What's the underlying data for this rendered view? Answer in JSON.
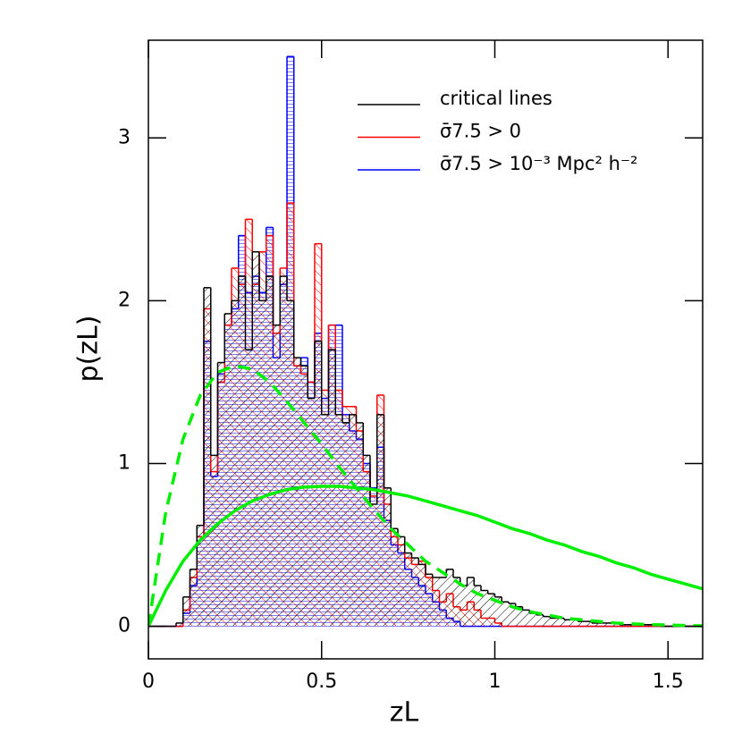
{
  "chart_data": {
    "type": "histogram",
    "xlabel": "zL",
    "ylabel": "p(zL)",
    "xlim": [
      0,
      1.6
    ],
    "ylim": [
      -0.2,
      3.6
    ],
    "xticks": [
      0,
      0.5,
      1,
      1.5
    ],
    "yticks": [
      0,
      1,
      2,
      3
    ],
    "legend": "upper right",
    "bins": [
      0,
      0.02,
      0.04,
      0.06,
      0.08,
      0.1,
      0.12,
      0.14,
      0.16,
      0.18,
      0.2,
      0.22,
      0.24,
      0.26,
      0.28,
      0.3,
      0.32,
      0.34,
      0.36,
      0.38,
      0.4,
      0.42,
      0.44,
      0.46,
      0.48,
      0.5,
      0.52,
      0.54,
      0.56,
      0.58,
      0.6,
      0.62,
      0.64,
      0.66,
      0.68,
      0.7,
      0.72,
      0.74,
      0.76,
      0.78,
      0.8,
      0.82,
      0.84,
      0.86,
      0.88,
      0.9,
      0.92,
      0.94,
      0.96,
      0.98,
      1,
      1.02,
      1.04,
      1.06,
      1.08,
      1.1,
      1.12,
      1.14,
      1.16,
      1.18,
      1.2,
      1.22,
      1.24,
      1.26,
      1.28,
      1.3,
      1.32,
      1.34,
      1.36,
      1.38,
      1.4,
      1.42,
      1.44,
      1.46,
      1.48,
      1.5,
      1.52,
      1.54,
      1.56,
      1.58,
      1.6
    ],
    "series": [
      {
        "name": "critical lines",
        "color": "#000000",
        "hatch": "backslash",
        "values": [
          0,
          0,
          0,
          0,
          0.02,
          0.18,
          0.35,
          0.62,
          2.08,
          1.05,
          1.62,
          1.92,
          2.0,
          2.15,
          1.7,
          2.3,
          2.0,
          2.15,
          1.85,
          2.15,
          2.0,
          1.65,
          1.6,
          1.4,
          1.75,
          1.3,
          1.7,
          1.3,
          1.25,
          1.3,
          1.25,
          1.05,
          0.75,
          1.3,
          0.85,
          0.6,
          0.55,
          0.45,
          0.42,
          0.38,
          0.32,
          0.3,
          0.3,
          0.35,
          0.3,
          0.25,
          0.3,
          0.25,
          0.22,
          0.2,
          0.18,
          0.15,
          0.14,
          0.12,
          0.1,
          0.08,
          0.07,
          0.06,
          0.05,
          0.05,
          0.04,
          0.04,
          0.03,
          0.03,
          0.02,
          0.02,
          0.02,
          0.02,
          0.01,
          0.01,
          0.01,
          0.01,
          0.01,
          0.01,
          0,
          0,
          0,
          0,
          0,
          0
        ]
      },
      {
        "name": "σ̄7.5 > 0",
        "color": "#ff0000",
        "hatch": "slash",
        "values": [
          0,
          0,
          0,
          0,
          0,
          0.1,
          0.3,
          0.55,
          1.95,
          0.95,
          1.5,
          1.85,
          2.2,
          2.1,
          2.5,
          2.1,
          2.3,
          2.4,
          1.8,
          2.2,
          2.6,
          1.6,
          1.55,
          1.5,
          2.35,
          1.45,
          1.85,
          1.45,
          1.35,
          1.35,
          1.2,
          0.95,
          0.8,
          1.42,
          0.75,
          0.55,
          0.5,
          0.42,
          0.38,
          0.4,
          0.3,
          0.22,
          0.15,
          0.2,
          0.12,
          0.1,
          0.15,
          0.1,
          0.05,
          0.05,
          0.02,
          0,
          0,
          0,
          0,
          0,
          0,
          0,
          0,
          0,
          0,
          0,
          0,
          0,
          0,
          0,
          0,
          0,
          0,
          0,
          0,
          0,
          0,
          0,
          0,
          0,
          0,
          0,
          0,
          0
        ]
      },
      {
        "name": "σ̄7.5 > 10⁻³ Mpc² h⁻²",
        "color": "#0000ff",
        "hatch": "horizontal",
        "values": [
          0,
          0,
          0,
          0,
          0,
          0.08,
          0.25,
          0.55,
          1.75,
          0.92,
          1.55,
          1.85,
          1.95,
          2.4,
          2.05,
          2.15,
          2.05,
          2.45,
          1.65,
          2.1,
          3.5,
          1.6,
          1.65,
          1.5,
          1.8,
          1.4,
          1.85,
          1.85,
          1.3,
          1.2,
          1.15,
          1.0,
          0.85,
          1.1,
          0.65,
          0.5,
          0.45,
          0.35,
          0.3,
          0.25,
          0.2,
          0.15,
          0.1,
          0.05,
          0.03,
          0,
          0,
          0,
          0,
          0,
          0,
          0,
          0,
          0,
          0,
          0,
          0,
          0,
          0,
          0,
          0,
          0,
          0,
          0,
          0,
          0,
          0,
          0,
          0,
          0,
          0,
          0,
          0,
          0,
          0,
          0,
          0,
          0,
          0,
          0
        ]
      }
    ],
    "lines": [
      {
        "color": "#00ee00",
        "style": "dashed",
        "x": [
          0,
          0.05,
          0.1,
          0.15,
          0.2,
          0.25,
          0.3,
          0.35,
          0.4,
          0.45,
          0.5,
          0.55,
          0.6,
          0.65,
          0.7,
          0.75,
          0.8,
          0.85,
          0.9,
          0.95,
          1,
          1.05,
          1.1,
          1.15,
          1.2,
          1.25,
          1.3,
          1.35,
          1.4,
          1.45,
          1.5,
          1.55,
          1.6
        ],
        "values": [
          0,
          0.7,
          1.15,
          1.42,
          1.56,
          1.6,
          1.58,
          1.5,
          1.38,
          1.25,
          1.12,
          0.98,
          0.85,
          0.72,
          0.6,
          0.5,
          0.4,
          0.33,
          0.26,
          0.2,
          0.16,
          0.12,
          0.09,
          0.07,
          0.05,
          0.04,
          0.03,
          0.02,
          0.015,
          0.01,
          0.008,
          0.005,
          0.003
        ]
      },
      {
        "color": "#00ee00",
        "style": "solid",
        "x": [
          0,
          0.05,
          0.1,
          0.15,
          0.2,
          0.25,
          0.3,
          0.35,
          0.4,
          0.45,
          0.5,
          0.55,
          0.6,
          0.65,
          0.7,
          0.75,
          0.8,
          0.85,
          0.9,
          0.95,
          1,
          1.05,
          1.1,
          1.15,
          1.2,
          1.25,
          1.3,
          1.35,
          1.4,
          1.45,
          1.5,
          1.55,
          1.6
        ],
        "values": [
          0,
          0.22,
          0.4,
          0.53,
          0.63,
          0.71,
          0.77,
          0.81,
          0.84,
          0.855,
          0.86,
          0.86,
          0.85,
          0.84,
          0.82,
          0.8,
          0.77,
          0.74,
          0.71,
          0.68,
          0.64,
          0.6,
          0.57,
          0.53,
          0.5,
          0.46,
          0.43,
          0.39,
          0.36,
          0.32,
          0.29,
          0.26,
          0.23
        ]
      }
    ]
  }
}
